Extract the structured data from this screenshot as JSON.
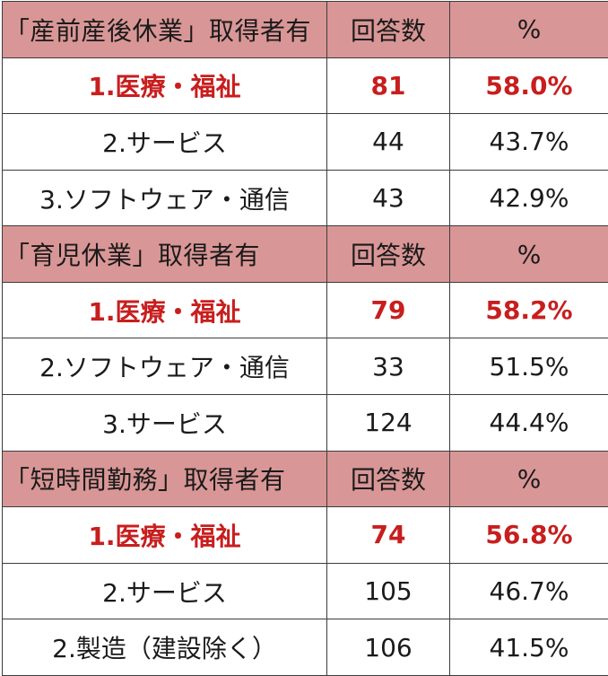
{
  "sections": [
    {
      "title": "「産前産後休業」取得者有",
      "col_count": "回答数",
      "col_pct": "%",
      "rows": [
        {
          "label": "1.医療・福祉",
          "count": "81",
          "pct": "58.0%"
        },
        {
          "label": "2.サービス",
          "count": "44",
          "pct": "43.7%"
        },
        {
          "label": "3.ソフトウェア・通信",
          "count": "43",
          "pct": "42.9%"
        }
      ]
    },
    {
      "title": "「育児休業」取得者有",
      "col_count": "回答数",
      "col_pct": "%",
      "rows": [
        {
          "label": "1.医療・福祉",
          "count": "79",
          "pct": "58.2%"
        },
        {
          "label": "2.ソフトウェア・通信",
          "count": "33",
          "pct": "51.5%"
        },
        {
          "label": "3.サービス",
          "count": "124",
          "pct": "44.4%"
        }
      ]
    },
    {
      "title": "「短時間勤務」取得者有",
      "col_count": "回答数",
      "col_pct": "%",
      "rows": [
        {
          "label": "1.医療・福祉",
          "count": "74",
          "pct": "56.8%"
        },
        {
          "label": "2.サービス",
          "count": "105",
          "pct": "46.7%"
        },
        {
          "label": "2.製造（建設除く）",
          "count": "106",
          "pct": "41.5%"
        }
      ]
    }
  ],
  "colors": {
    "header_bg": "#d99696",
    "highlight_text": "#c81e1e",
    "border": "#3c3c3c"
  }
}
